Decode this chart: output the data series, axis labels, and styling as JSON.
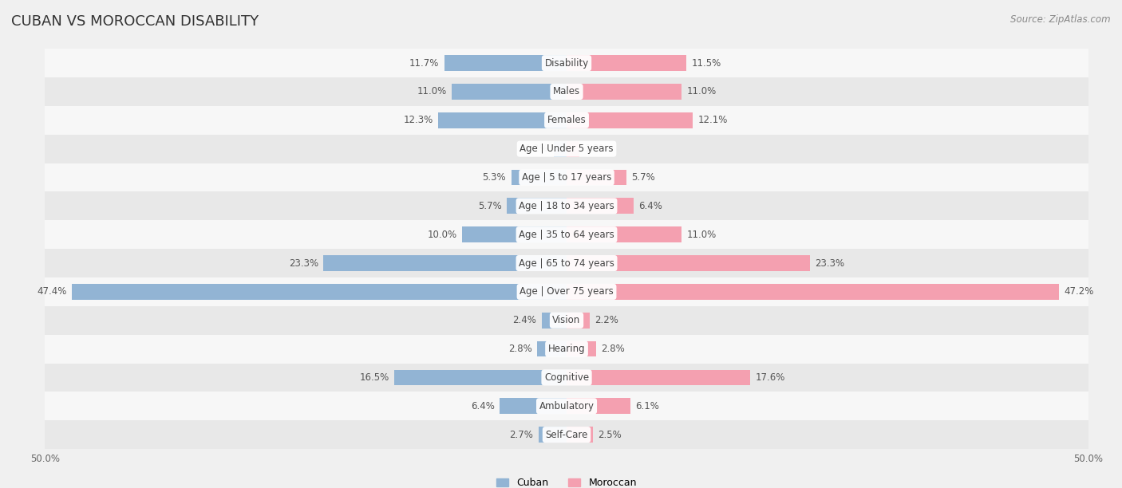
{
  "title": "CUBAN VS MOROCCAN DISABILITY",
  "source": "Source: ZipAtlas.com",
  "categories": [
    "Disability",
    "Males",
    "Females",
    "Age | Under 5 years",
    "Age | 5 to 17 years",
    "Age | 18 to 34 years",
    "Age | 35 to 64 years",
    "Age | 65 to 74 years",
    "Age | Over 75 years",
    "Vision",
    "Hearing",
    "Cognitive",
    "Ambulatory",
    "Self-Care"
  ],
  "cuban": [
    11.7,
    11.0,
    12.3,
    1.2,
    5.3,
    5.7,
    10.0,
    23.3,
    47.4,
    2.4,
    2.8,
    16.5,
    6.4,
    2.7
  ],
  "moroccan": [
    11.5,
    11.0,
    12.1,
    1.2,
    5.7,
    6.4,
    11.0,
    23.3,
    47.2,
    2.2,
    2.8,
    17.6,
    6.1,
    2.5
  ],
  "cuban_color": "#92b4d4",
  "moroccan_color": "#f4a0b0",
  "cuban_label": "Cuban",
  "moroccan_label": "Moroccan",
  "max_val": 50.0,
  "bar_height": 0.55,
  "bg_color": "#f0f0f0",
  "row_bg_even": "#f7f7f7",
  "row_bg_odd": "#e8e8e8",
  "title_fontsize": 13,
  "label_fontsize": 8.5,
  "value_fontsize": 8.5,
  "legend_fontsize": 9,
  "source_fontsize": 8.5
}
